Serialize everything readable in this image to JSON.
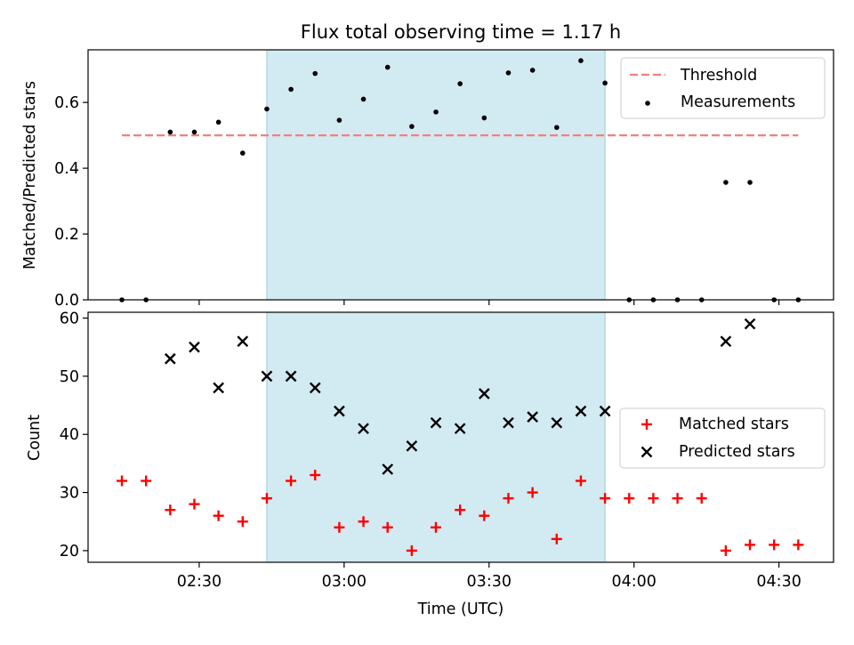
{
  "chart_data": [
    {
      "type": "scatter",
      "title": "Flux total observing time = 1.17 h",
      "xlabel": "",
      "ylabel": "Matched/Predicted stars",
      "ylim": [
        0,
        0.76
      ],
      "yticks": [
        0.0,
        0.2,
        0.4,
        0.6
      ],
      "ytick_labels": [
        "0.0",
        "0.2",
        "0.4",
        "0.6"
      ],
      "legend_placement": "top-right",
      "shaded_interval": {
        "start": "02:44",
        "end": "03:54",
        "color": "#add8e6"
      },
      "threshold": {
        "name": "Threshold",
        "value": 0.5,
        "x_start": "02:14",
        "x_end": "04:34",
        "color": "#f08080"
      },
      "series": [
        {
          "name": "Measurements",
          "color": "#000000",
          "x": [
            "02:14",
            "02:19",
            "02:24",
            "02:29",
            "02:34",
            "02:39",
            "02:44",
            "02:49",
            "02:54",
            "02:59",
            "03:04",
            "03:09",
            "03:14",
            "03:19",
            "03:24",
            "03:29",
            "03:34",
            "03:39",
            "03:44",
            "03:49",
            "03:54",
            "03:59",
            "04:04",
            "04:09",
            "04:14",
            "04:19",
            "04:24",
            "04:29",
            "04:34"
          ],
          "y": [
            0.0,
            0.0,
            0.51,
            0.51,
            0.54,
            0.446,
            0.58,
            0.64,
            0.688,
            0.546,
            0.61,
            0.707,
            0.527,
            0.571,
            0.657,
            0.553,
            0.69,
            0.698,
            0.524,
            0.727,
            0.659,
            0.0,
            0.0,
            0.0,
            0.0,
            0.357,
            0.357,
            0.0,
            0.0
          ]
        }
      ],
      "legend": {
        "threshold_label": "Threshold",
        "measurements_label": "Measurements"
      }
    },
    {
      "type": "scatter",
      "title": "",
      "xlabel": "Time (UTC)",
      "ylabel": "Count",
      "ylim": [
        18,
        61
      ],
      "yticks": [
        20,
        30,
        40,
        50,
        60
      ],
      "ytick_labels": [
        "20",
        "30",
        "40",
        "50",
        "60"
      ],
      "xticks": [
        "02:30",
        "03:00",
        "03:30",
        "04:00",
        "04:30"
      ],
      "legend_placement": "center-right",
      "shaded_interval": {
        "start": "02:44",
        "end": "03:54",
        "color": "#add8e6"
      },
      "series": [
        {
          "name": "Matched stars",
          "marker": "plus",
          "color": "#ff0000",
          "x": [
            "02:14",
            "02:19",
            "02:24",
            "02:29",
            "02:34",
            "02:39",
            "02:44",
            "02:49",
            "02:54",
            "02:59",
            "03:04",
            "03:09",
            "03:14",
            "03:19",
            "03:24",
            "03:29",
            "03:34",
            "03:39",
            "03:44",
            "03:49",
            "03:54",
            "03:59",
            "04:04",
            "04:09",
            "04:14",
            "04:19",
            "04:24",
            "04:29",
            "04:34"
          ],
          "y": [
            32,
            32,
            27,
            28,
            26,
            25,
            29,
            32,
            33,
            24,
            25,
            24,
            20,
            24,
            27,
            26,
            29,
            30,
            22,
            32,
            29,
            29,
            29,
            29,
            29,
            20,
            21,
            21,
            21
          ]
        },
        {
          "name": "Predicted stars",
          "marker": "x",
          "color": "#000000",
          "x": [
            "02:24",
            "02:29",
            "02:34",
            "02:39",
            "02:44",
            "02:49",
            "02:54",
            "02:59",
            "03:04",
            "03:09",
            "03:14",
            "03:19",
            "03:24",
            "03:29",
            "03:34",
            "03:39",
            "03:44",
            "03:49",
            "03:54",
            "04:19",
            "04:24"
          ],
          "y": [
            53,
            55,
            48,
            56,
            50,
            50,
            48,
            44,
            41,
            34,
            38,
            42,
            41,
            47,
            42,
            43,
            42,
            44,
            44,
            56,
            59
          ]
        }
      ],
      "legend": {
        "matched_label": "Matched stars",
        "predicted_label": "Predicted stars"
      }
    }
  ]
}
